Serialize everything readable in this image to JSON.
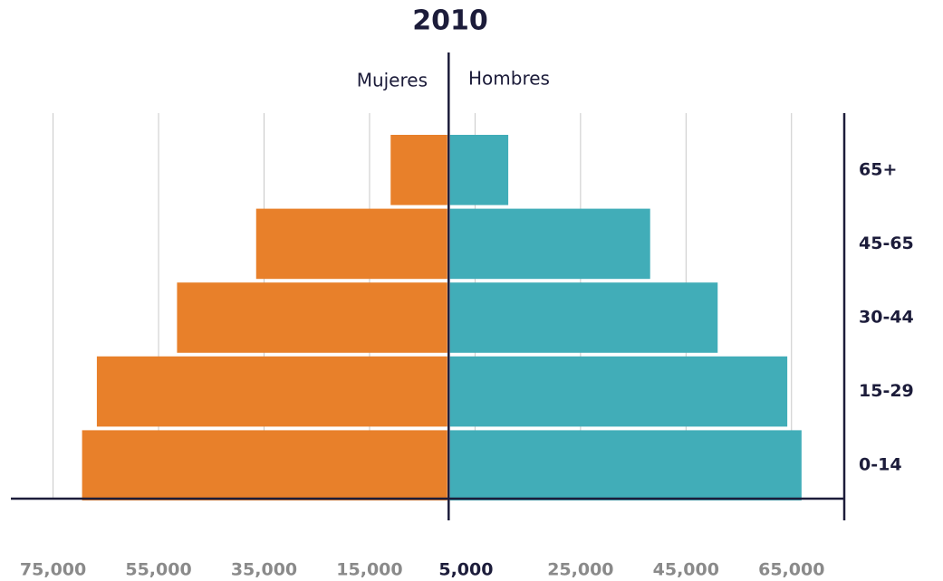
{
  "chart_data": {
    "type": "population_pyramid",
    "title": "2010",
    "categories": [
      "0-14",
      "15-29",
      "30-44",
      "45-65",
      "65+"
    ],
    "series": [
      {
        "name": "Mujeres",
        "color": "#e8802a",
        "values": [
          69500,
          66700,
          51500,
          36500,
          11000
        ]
      },
      {
        "name": "Hombres",
        "color": "#41adb8",
        "values": [
          66900,
          64200,
          51000,
          38200,
          11300
        ]
      }
    ],
    "xlim": [
      -83000,
      75000
    ],
    "xticks": [
      {
        "value": -75000,
        "label": "75,000"
      },
      {
        "value": -55000,
        "label": "55,000"
      },
      {
        "value": -35000,
        "label": "35,000"
      },
      {
        "value": -15000,
        "label": "15,000"
      },
      {
        "value": 5000,
        "label": "5,000"
      },
      {
        "value": 25000,
        "label": "25,000"
      },
      {
        "value": 45000,
        "label": "45,000"
      },
      {
        "value": 65000,
        "label": "65,000"
      }
    ],
    "grid": true
  }
}
